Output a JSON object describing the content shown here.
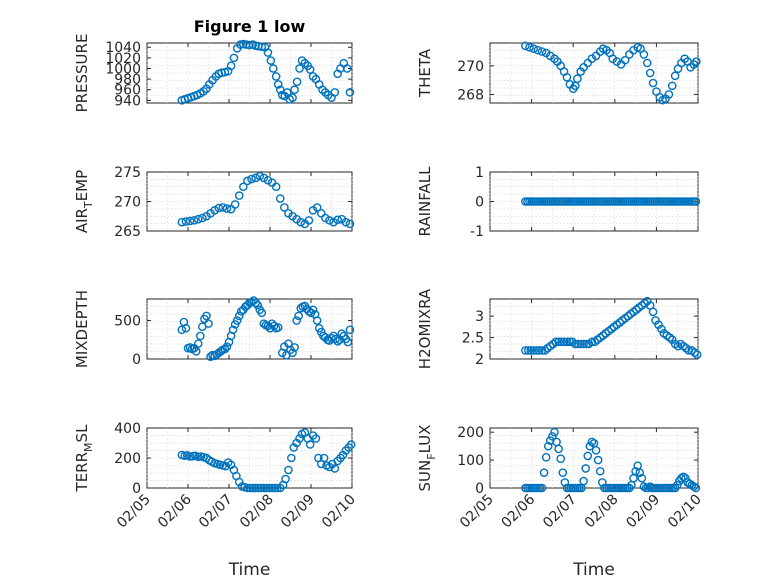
{
  "chart_data": [
    {
      "type": "scatter",
      "title": "Figure 1 low",
      "ylabel": "PRESSURE",
      "ylim": [
        935,
        1048
      ],
      "yticks": [
        "1040",
        "1020",
        "1000",
        "980",
        "960",
        "940"
      ],
      "ytick_values": [
        1040,
        1020,
        1000,
        980,
        960,
        940
      ],
      "xlim": [
        0,
        5
      ],
      "xticks": [],
      "xlabel": "",
      "x": [
        0.85,
        0.92,
        1.0,
        1.08,
        1.15,
        1.22,
        1.3,
        1.38,
        1.45,
        1.52,
        1.6,
        1.68,
        1.75,
        1.82,
        1.9,
        1.98,
        2.05,
        2.12,
        2.2,
        2.28,
        2.35,
        2.42,
        2.5,
        2.58,
        2.65,
        2.72,
        2.8,
        2.88,
        2.95,
        3.02,
        3.08,
        3.15,
        3.2,
        3.25,
        3.3,
        3.36,
        3.42,
        3.48,
        3.55,
        3.6,
        3.66,
        3.72,
        3.78,
        3.85,
        3.92,
        3.98,
        4.05,
        4.12,
        4.2,
        4.28,
        4.35,
        4.42,
        4.5,
        4.58,
        4.65,
        4.72,
        4.8,
        4.88,
        4.95
      ],
      "values": [
        940,
        942,
        944,
        946,
        948,
        950,
        953,
        957,
        962,
        970,
        978,
        985,
        990,
        992,
        993,
        995,
        1005,
        1020,
        1038,
        1045,
        1046,
        1045,
        1044,
        1045,
        1043,
        1042,
        1041,
        1040,
        1030,
        1015,
        1000,
        985,
        970,
        960,
        950,
        948,
        955,
        942,
        945,
        960,
        975,
        1000,
        1015,
        1010,
        1005,
        998,
        985,
        980,
        970,
        960,
        955,
        950,
        945,
        955,
        990,
        1000,
        1010,
        1000,
        955
      ]
    },
    {
      "type": "scatter",
      "title": "",
      "ylabel": "THETA",
      "ylim": [
        267.4,
        271.6
      ],
      "yticks": [
        "270",
        "268"
      ],
      "ytick_values": [
        270,
        268
      ],
      "xlim": [
        0,
        5
      ],
      "xticks": [],
      "xlabel": "",
      "x": [
        0.85,
        0.95,
        1.05,
        1.15,
        1.25,
        1.35,
        1.45,
        1.55,
        1.62,
        1.7,
        1.78,
        1.85,
        1.92,
        2.0,
        2.05,
        2.1,
        2.18,
        2.25,
        2.35,
        2.45,
        2.55,
        2.65,
        2.72,
        2.8,
        2.88,
        2.95,
        3.05,
        3.15,
        3.25,
        3.35,
        3.45,
        3.55,
        3.62,
        3.7,
        3.78,
        3.85,
        3.92,
        4.0,
        4.08,
        4.15,
        4.22,
        4.3,
        4.38,
        4.45,
        4.52,
        4.6,
        4.68,
        4.75,
        4.82,
        4.9,
        4.96
      ],
      "values": [
        271.4,
        271.3,
        271.2,
        271.1,
        271.0,
        270.9,
        270.7,
        270.5,
        270.3,
        270.0,
        269.6,
        269.2,
        268.7,
        268.4,
        268.6,
        269.1,
        269.6,
        269.9,
        270.2,
        270.5,
        270.7,
        271.0,
        271.2,
        271.1,
        270.9,
        270.5,
        270.3,
        270.1,
        270.4,
        270.8,
        271.1,
        271.3,
        271.2,
        270.8,
        270.2,
        269.5,
        268.8,
        268.2,
        267.8,
        267.6,
        267.7,
        268.0,
        268.6,
        269.3,
        269.8,
        270.2,
        270.5,
        270.3,
        269.9,
        270.1,
        270.3
      ]
    },
    {
      "type": "scatter",
      "title": "",
      "ylabel": "AIR_TEMP",
      "ylabel_parts": {
        "main": "AIR",
        "sub": "T",
        "rest": "EMP"
      },
      "ylim": [
        265,
        275
      ],
      "yticks": [
        "275",
        "270",
        "265"
      ],
      "ytick_values": [
        275,
        270,
        265
      ],
      "xlim": [
        0,
        5
      ],
      "xticks": [],
      "xlabel": "",
      "x": [
        0.85,
        0.95,
        1.05,
        1.15,
        1.25,
        1.35,
        1.45,
        1.55,
        1.65,
        1.75,
        1.85,
        1.95,
        2.05,
        2.15,
        2.25,
        2.35,
        2.45,
        2.55,
        2.65,
        2.75,
        2.85,
        2.95,
        3.05,
        3.15,
        3.25,
        3.35,
        3.45,
        3.55,
        3.65,
        3.75,
        3.85,
        3.95,
        4.05,
        4.15,
        4.25,
        4.35,
        4.45,
        4.55,
        4.65,
        4.75,
        4.85,
        4.95
      ],
      "values": [
        266.5,
        266.6,
        266.7,
        266.8,
        267.0,
        267.2,
        267.5,
        268.0,
        268.5,
        268.9,
        269.0,
        268.8,
        268.7,
        269.5,
        271.0,
        272.5,
        273.5,
        273.8,
        274.0,
        274.3,
        274.0,
        273.6,
        273.2,
        272.5,
        270.5,
        269.0,
        268.0,
        267.5,
        267.0,
        266.5,
        266.2,
        266.8,
        268.5,
        269.0,
        268.0,
        267.2,
        266.8,
        266.5,
        266.9,
        267.0,
        266.5,
        266.2
      ]
    },
    {
      "type": "scatter",
      "title": "",
      "ylabel": "RAINFALL",
      "ylim": [
        -1,
        1
      ],
      "yticks": [
        "1",
        "0",
        "-1"
      ],
      "ytick_values": [
        1,
        0,
        -1
      ],
      "xlim": [
        0,
        5
      ],
      "xticks": [],
      "xlabel": "",
      "x_start": 0.85,
      "x_end": 4.98,
      "x_step": 0.05,
      "constant_value": 0
    },
    {
      "type": "scatter",
      "title": "",
      "ylabel": "MIXDEPTH",
      "ylim": [
        0,
        780
      ],
      "yticks": [
        "500",
        "0"
      ],
      "ytick_values": [
        500,
        0
      ],
      "xlim": [
        0,
        5
      ],
      "xticks": [],
      "xlabel": "",
      "x": [
        0.85,
        0.9,
        0.95,
        1.0,
        1.05,
        1.1,
        1.15,
        1.2,
        1.25,
        1.3,
        1.35,
        1.4,
        1.45,
        1.5,
        1.55,
        1.6,
        1.65,
        1.7,
        1.75,
        1.8,
        1.85,
        1.9,
        1.95,
        2.0,
        2.05,
        2.1,
        2.15,
        2.2,
        2.25,
        2.3,
        2.35,
        2.4,
        2.45,
        2.5,
        2.55,
        2.6,
        2.65,
        2.7,
        2.75,
        2.8,
        2.85,
        2.9,
        2.95,
        3.0,
        3.05,
        3.1,
        3.15,
        3.2,
        3.3,
        3.35,
        3.4,
        3.45,
        3.5,
        3.55,
        3.6,
        3.65,
        3.7,
        3.75,
        3.8,
        3.85,
        3.9,
        3.95,
        4.0,
        4.05,
        4.1,
        4.15,
        4.2,
        4.25,
        4.3,
        4.35,
        4.4,
        4.45,
        4.5,
        4.55,
        4.6,
        4.65,
        4.7,
        4.75,
        4.8,
        4.85,
        4.9,
        4.95
      ],
      "values": [
        380,
        480,
        400,
        140,
        150,
        130,
        140,
        100,
        200,
        300,
        420,
        520,
        560,
        460,
        30,
        50,
        40,
        60,
        80,
        100,
        120,
        130,
        160,
        220,
        300,
        380,
        450,
        500,
        560,
        620,
        640,
        680,
        700,
        730,
        740,
        760,
        730,
        700,
        640,
        600,
        460,
        440,
        430,
        400,
        460,
        430,
        400,
        410,
        80,
        160,
        50,
        200,
        120,
        80,
        150,
        500,
        560,
        660,
        680,
        690,
        650,
        620,
        600,
        640,
        580,
        500,
        400,
        350,
        300,
        280,
        250,
        240,
        270,
        300,
        260,
        230,
        250,
        330,
        300,
        260,
        220,
        380
      ]
    },
    {
      "type": "scatter",
      "title": "",
      "ylabel": "H2OMIXRA",
      "ylim": [
        2.0,
        3.4
      ],
      "yticks": [
        "3",
        "2.5",
        "2"
      ],
      "ytick_values": [
        3,
        2.5,
        2
      ],
      "xlim": [
        0,
        5
      ],
      "xticks": [],
      "xlabel": "",
      "x": [
        0.85,
        0.92,
        0.98,
        1.05,
        1.12,
        1.18,
        1.25,
        1.32,
        1.38,
        1.45,
        1.52,
        1.58,
        1.65,
        1.72,
        1.78,
        1.85,
        1.92,
        1.98,
        2.05,
        2.12,
        2.18,
        2.25,
        2.32,
        2.38,
        2.45,
        2.52,
        2.58,
        2.65,
        2.72,
        2.78,
        2.85,
        2.92,
        2.98,
        3.05,
        3.12,
        3.18,
        3.25,
        3.32,
        3.38,
        3.45,
        3.52,
        3.58,
        3.65,
        3.72,
        3.78,
        3.85,
        3.92,
        3.98,
        4.05,
        4.12,
        4.18,
        4.25,
        4.32,
        4.38,
        4.45,
        4.52,
        4.58,
        4.65,
        4.72,
        4.78,
        4.85,
        4.92,
        4.98
      ],
      "values": [
        2.2,
        2.2,
        2.2,
        2.2,
        2.2,
        2.2,
        2.2,
        2.2,
        2.25,
        2.3,
        2.35,
        2.4,
        2.4,
        2.4,
        2.4,
        2.4,
        2.4,
        2.4,
        2.35,
        2.35,
        2.35,
        2.35,
        2.35,
        2.35,
        2.4,
        2.4,
        2.45,
        2.5,
        2.55,
        2.6,
        2.65,
        2.7,
        2.75,
        2.8,
        2.85,
        2.9,
        2.95,
        3.0,
        3.05,
        3.1,
        3.15,
        3.2,
        3.25,
        3.3,
        3.35,
        3.25,
        3.1,
        2.9,
        2.8,
        2.7,
        2.6,
        2.55,
        2.5,
        2.45,
        2.35,
        2.3,
        2.35,
        2.3,
        2.25,
        2.2,
        2.2,
        2.15,
        2.1
      ]
    },
    {
      "type": "scatter",
      "title": "",
      "ylabel": "TERR_MSL",
      "ylabel_parts": {
        "main": "TERR",
        "sub": "M",
        "rest": "SL"
      },
      "ylim": [
        0,
        400
      ],
      "yticks": [
        "400",
        "200",
        "0"
      ],
      "ytick_values": [
        400,
        200,
        0
      ],
      "xlim": [
        0,
        5
      ],
      "xticks": [
        "02/05",
        "02/06",
        "02/07",
        "02/08",
        "02/09",
        "02/10"
      ],
      "xtick_values": [
        0,
        1,
        2,
        3,
        4,
        5
      ],
      "xlabel": "Time",
      "x": [
        0.85,
        0.92,
        0.98,
        1.05,
        1.12,
        1.18,
        1.25,
        1.32,
        1.38,
        1.45,
        1.52,
        1.58,
        1.65,
        1.72,
        1.78,
        1.85,
        1.92,
        1.98,
        2.05,
        2.12,
        2.18,
        2.25,
        2.32,
        2.38,
        2.45,
        2.52,
        2.58,
        2.65,
        2.72,
        2.78,
        2.85,
        2.92,
        2.98,
        3.05,
        3.12,
        3.18,
        3.25,
        3.32,
        3.38,
        3.45,
        3.52,
        3.58,
        3.65,
        3.72,
        3.78,
        3.85,
        3.92,
        3.98,
        4.05,
        4.12,
        4.18,
        4.25,
        4.32,
        4.38,
        4.45,
        4.52,
        4.58,
        4.65,
        4.72,
        4.78,
        4.85,
        4.92,
        4.98
      ],
      "values": [
        220,
        215,
        218,
        210,
        212,
        215,
        208,
        210,
        205,
        200,
        185,
        175,
        165,
        160,
        155,
        150,
        145,
        170,
        155,
        120,
        80,
        40,
        10,
        5,
        0,
        0,
        0,
        0,
        0,
        0,
        0,
        0,
        0,
        0,
        0,
        0,
        0,
        20,
        60,
        120,
        200,
        270,
        300,
        330,
        360,
        370,
        330,
        290,
        350,
        330,
        200,
        160,
        200,
        150,
        140,
        160,
        130,
        180,
        200,
        220,
        250,
        270,
        290
      ]
    },
    {
      "type": "scatter",
      "title": "",
      "ylabel": "SUN_FLUX",
      "ylabel_parts": {
        "main": "SUN",
        "sub": "F",
        "rest": "LUX"
      },
      "ylim": [
        0,
        215
      ],
      "yticks": [
        "200",
        "100",
        "0"
      ],
      "ytick_values": [
        200,
        100,
        0
      ],
      "xlim": [
        0,
        5
      ],
      "xticks": [
        "02/05",
        "02/06",
        "02/07",
        "02/08",
        "02/09",
        "02/10"
      ],
      "xtick_values": [
        0,
        1,
        2,
        3,
        4,
        5
      ],
      "xlabel": "Time",
      "x": [
        0.85,
        0.9,
        0.95,
        1.0,
        1.05,
        1.1,
        1.15,
        1.2,
        1.25,
        1.3,
        1.35,
        1.4,
        1.45,
        1.5,
        1.55,
        1.6,
        1.65,
        1.7,
        1.75,
        1.8,
        1.85,
        1.9,
        1.95,
        2.0,
        2.05,
        2.1,
        2.15,
        2.2,
        2.25,
        2.3,
        2.35,
        2.4,
        2.45,
        2.5,
        2.55,
        2.6,
        2.65,
        2.7,
        2.75,
        2.8,
        2.85,
        2.9,
        2.95,
        3.0,
        3.05,
        3.1,
        3.15,
        3.2,
        3.25,
        3.3,
        3.35,
        3.4,
        3.45,
        3.5,
        3.55,
        3.6,
        3.65,
        3.7,
        3.75,
        3.8,
        3.85,
        3.9,
        3.95,
        4.0,
        4.05,
        4.1,
        4.15,
        4.2,
        4.25,
        4.3,
        4.35,
        4.4,
        4.45,
        4.5,
        4.55,
        4.6,
        4.65,
        4.7,
        4.75,
        4.8,
        4.85,
        4.9,
        4.95
      ],
      "values": [
        0,
        0,
        0,
        0,
        0,
        0,
        0,
        0,
        0,
        55,
        110,
        150,
        170,
        185,
        200,
        165,
        140,
        105,
        55,
        20,
        0,
        0,
        0,
        0,
        0,
        0,
        0,
        0,
        25,
        70,
        115,
        150,
        165,
        160,
        135,
        100,
        60,
        20,
        0,
        0,
        0,
        0,
        0,
        0,
        0,
        0,
        0,
        0,
        0,
        0,
        0,
        10,
        35,
        60,
        80,
        55,
        35,
        5,
        0,
        0,
        5,
        0,
        0,
        0,
        0,
        0,
        0,
        0,
        0,
        0,
        0,
        0,
        0,
        10,
        25,
        35,
        40,
        35,
        20,
        15,
        10,
        5,
        0
      ]
    }
  ]
}
